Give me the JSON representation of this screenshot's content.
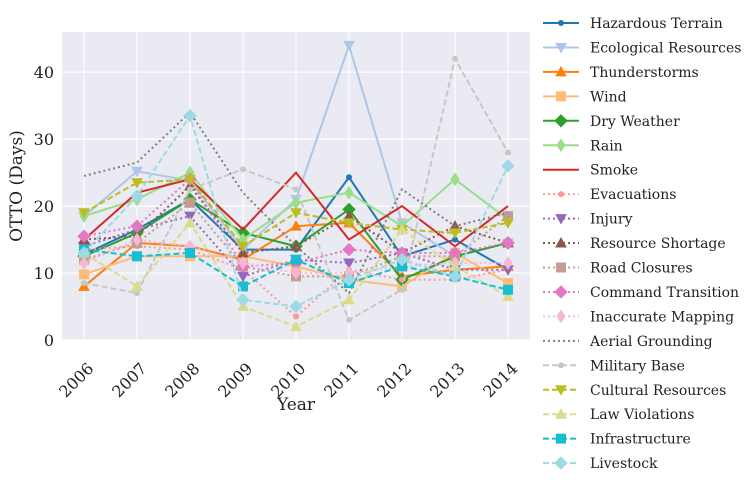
{
  "chart_data": {
    "type": "line",
    "xlabel": "Year",
    "ylabel": "OTTO (Days)",
    "ylim": [
      0,
      46
    ],
    "yticks": [
      0,
      10,
      20,
      30,
      40
    ],
    "categories": [
      "2006",
      "2007",
      "2008",
      "2009",
      "2010",
      "2011",
      "2012",
      "2013",
      "2014"
    ],
    "grid": true,
    "legend_position": "right",
    "series": [
      {
        "name": "Hazardous Terrain",
        "color": "#1f77b4",
        "dash": "",
        "marker": "circle-small",
        "values": [
          12.8,
          16.5,
          21.0,
          13.5,
          13.5,
          24.3,
          12.5,
          15.0,
          10.5
        ]
      },
      {
        "name": "Ecological Resources",
        "color": "#aec7e8",
        "dash": "",
        "marker": "triangle-down",
        "values": [
          18.5,
          25.2,
          23.8,
          13.5,
          21.0,
          44.0,
          17.5,
          12.5,
          14.5
        ]
      },
      {
        "name": "Thunderstorms",
        "color": "#ff7f0e",
        "dash": "",
        "marker": "triangle-up",
        "values": [
          8.0,
          14.5,
          14.0,
          12.0,
          17.0,
          17.5,
          9.5,
          10.5,
          11.0
        ]
      },
      {
        "name": "Wind",
        "color": "#ffbb78",
        "dash": "",
        "marker": "square",
        "values": [
          9.8,
          12.5,
          12.5,
          12.5,
          11.0,
          9.0,
          8.0,
          13.0,
          8.5
        ]
      },
      {
        "name": "Dry Weather",
        "color": "#2ca02c",
        "dash": "",
        "marker": "diamond",
        "values": [
          12.5,
          16.0,
          21.0,
          16.0,
          14.0,
          19.5,
          9.0,
          12.5,
          14.5
        ]
      },
      {
        "name": "Rain",
        "color": "#98df8a",
        "dash": "",
        "marker": "thin-diamond",
        "values": [
          18.5,
          21.0,
          25.0,
          15.0,
          20.5,
          22.0,
          17.0,
          24.0,
          18.0
        ]
      },
      {
        "name": "Smoke",
        "color": "#d62728",
        "dash": "",
        "marker": "none",
        "values": [
          15.0,
          22.0,
          24.0,
          16.5,
          25.0,
          15.0,
          20.0,
          14.0,
          20.0
        ]
      },
      {
        "name": "Evacuations",
        "color": "#ff9896",
        "dash": "2,3",
        "marker": "circle-small",
        "values": [
          13.5,
          14.0,
          13.5,
          10.5,
          3.5,
          10.5,
          9.0,
          9.0,
          10.5
        ]
      },
      {
        "name": "Injury",
        "color": "#9467bd",
        "dash": "2,3",
        "marker": "triangle-down",
        "values": [
          14.0,
          16.5,
          18.5,
          9.5,
          12.0,
          11.5,
          13.0,
          10.5,
          10.5
        ]
      },
      {
        "name": "Resource Shortage",
        "color": "#8c564b",
        "dash": "2,3",
        "marker": "triangle-up",
        "values": [
          15.0,
          15.5,
          23.0,
          13.0,
          14.0,
          18.5,
          13.0,
          17.0,
          14.5
        ]
      },
      {
        "name": "Road Closures",
        "color": "#c49c94",
        "dash": "2,3",
        "marker": "square",
        "values": [
          12.0,
          14.5,
          20.5,
          11.0,
          9.5,
          9.5,
          12.5,
          12.5,
          18.5
        ]
      },
      {
        "name": "Command Transition",
        "color": "#e377c2",
        "dash": "2,3",
        "marker": "diamond",
        "values": [
          15.5,
          17.0,
          24.0,
          11.0,
          11.5,
          13.5,
          13.0,
          13.0,
          14.5
        ]
      },
      {
        "name": "Inaccurate Mapping",
        "color": "#f7b6d2",
        "dash": "2,3",
        "marker": "thin-diamond",
        "values": [
          11.5,
          15.0,
          14.0,
          11.5,
          10.0,
          10.0,
          11.0,
          11.5,
          11.5
        ]
      },
      {
        "name": "Aerial Grounding",
        "color": "#7f7f7f",
        "dash": "2,3",
        "marker": "none",
        "values": [
          24.5,
          26.5,
          34.0,
          22.0,
          14.0,
          7.0,
          22.5,
          17.0,
          19.0
        ]
      },
      {
        "name": "Military Base",
        "color": "#c7c7c7",
        "dash": "6,3",
        "marker": "circle-small",
        "values": [
          8.5,
          7.0,
          22.5,
          25.5,
          22.5,
          3.0,
          7.5,
          42.0,
          28.0
        ]
      },
      {
        "name": "Cultural Resources",
        "color": "#bcbd22",
        "dash": "6,3",
        "marker": "triangle-down",
        "values": [
          19.0,
          23.5,
          24.0,
          14.0,
          19.0,
          17.5,
          16.5,
          16.0,
          17.5
        ]
      },
      {
        "name": "Law Violations",
        "color": "#dbdb8d",
        "dash": "6,3",
        "marker": "triangle-up",
        "values": [
          13.0,
          8.0,
          17.5,
          5.0,
          2.0,
          6.0,
          16.5,
          11.0,
          6.5
        ]
      },
      {
        "name": "Infrastructure",
        "color": "#17becf",
        "dash": "6,3",
        "marker": "square",
        "values": [
          13.5,
          12.5,
          13.0,
          8.0,
          12.0,
          8.5,
          11.0,
          9.5,
          7.5
        ]
      },
      {
        "name": "Livestock",
        "color": "#9edae5",
        "dash": "6,3",
        "marker": "diamond",
        "values": [
          13.0,
          21.5,
          33.5,
          6.0,
          5.0,
          9.0,
          12.0,
          9.5,
          26.0
        ]
      }
    ]
  }
}
